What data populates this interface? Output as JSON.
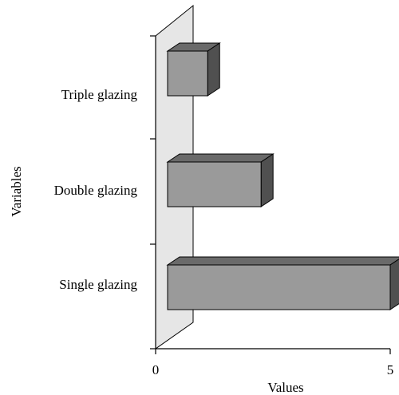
{
  "chart_data": {
    "type": "bar",
    "orientation": "horizontal",
    "style": "3d",
    "categories": [
      "Single glazing",
      "Double glazing",
      "Triple glazing"
    ],
    "values": [
      5,
      2.1,
      0.9
    ],
    "xlabel": "Values",
    "ylabel": "Variables",
    "xlim": [
      0,
      5
    ],
    "x_ticks": [
      "0",
      "5"
    ],
    "grid": false,
    "legend": "none",
    "colors": {
      "bar_front": "#9a9a9a",
      "bar_top": "#6a6a6a",
      "bar_side": "#505050",
      "wall": "#e6e6e6"
    }
  }
}
